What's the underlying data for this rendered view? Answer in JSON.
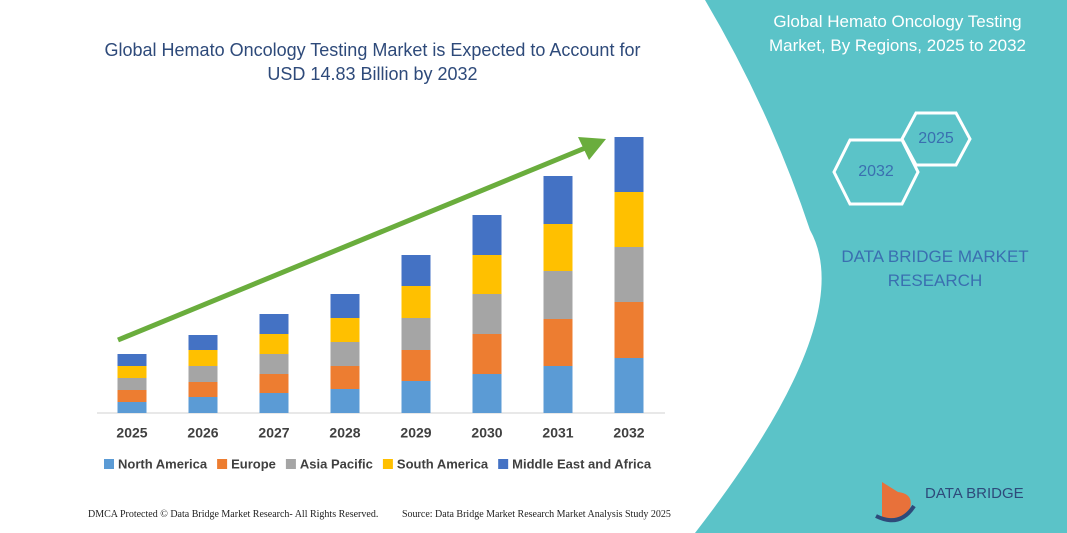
{
  "chart_data": {
    "type": "stacked_bar",
    "title": "Global Hemato Oncology Testing Market is Expected to Account for USD 14.83 Billion by 2032",
    "categories": [
      "2025",
      "2026",
      "2027",
      "2028",
      "2029",
      "2030",
      "2031",
      "2032"
    ],
    "series": [
      {
        "name": "North America",
        "color": "#5b9bd5",
        "values": [
          11,
          16,
          20,
          24,
          32,
          39,
          47,
          55
        ]
      },
      {
        "name": "Europe",
        "color": "#ed7d31",
        "values": [
          12,
          15,
          19,
          23,
          31,
          40,
          47,
          56
        ]
      },
      {
        "name": "Asia Pacific",
        "color": "#a5a5a5",
        "values": [
          12,
          16,
          20,
          24,
          32,
          40,
          48,
          55
        ]
      },
      {
        "name": "South America",
        "color": "#ffc000",
        "values": [
          12,
          16,
          20,
          24,
          32,
          39,
          47,
          55
        ]
      },
      {
        "name": "Middle East and Africa",
        "color": "#4472c4",
        "values": [
          12,
          15,
          20,
          24,
          31,
          40,
          48,
          55
        ]
      }
    ],
    "ylim": [
      0,
      300
    ],
    "grid": false,
    "legend": "bottom"
  },
  "panel": {
    "title": "Global Hemato Oncology Testing Market, By Regions, 2025 to 2032",
    "hex_back": "2025",
    "hex_front": "2032",
    "brand": "DATA BRIDGE MARKET RESEARCH",
    "logo": "DATA BRIDGE"
  },
  "footer": {
    "left": "DMCA Protected © Data Bridge Market Research- All Rights Reserved.",
    "right": "Source: Data Bridge Market Research Market Analysis Study 2025"
  }
}
